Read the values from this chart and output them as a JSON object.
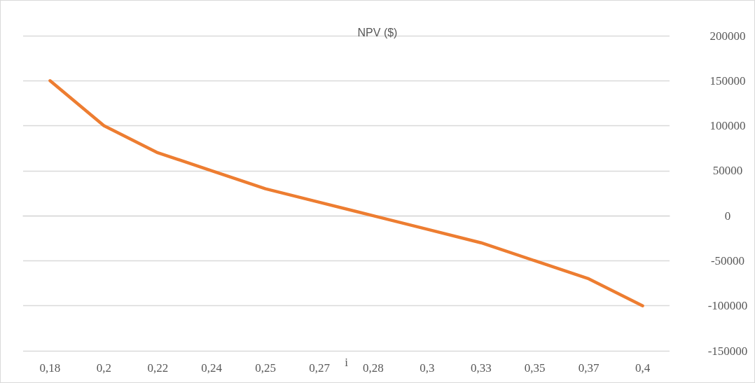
{
  "chart_data": {
    "type": "line",
    "title": "NPV ($)",
    "xlabel": "i",
    "categories": [
      "0,18",
      "0,2",
      "0,22",
      "0,24",
      "0,25",
      "0,27",
      "0,28",
      "0,3",
      "0,33",
      "0,35",
      "0,37",
      "0,4"
    ],
    "series": [
      {
        "color": "#ed7d31",
        "values": [
          150000,
          100000,
          70000,
          50000,
          30000,
          15000,
          0,
          -15000,
          -30000,
          -50000,
          -70000,
          -100000
        ]
      }
    ],
    "ylim": [
      -150000,
      200000
    ],
    "yticks": [
      -150000,
      -100000,
      -50000,
      0,
      50000,
      100000,
      150000,
      200000
    ],
    "grid": "y",
    "marker": "none",
    "line_style": "solid"
  }
}
